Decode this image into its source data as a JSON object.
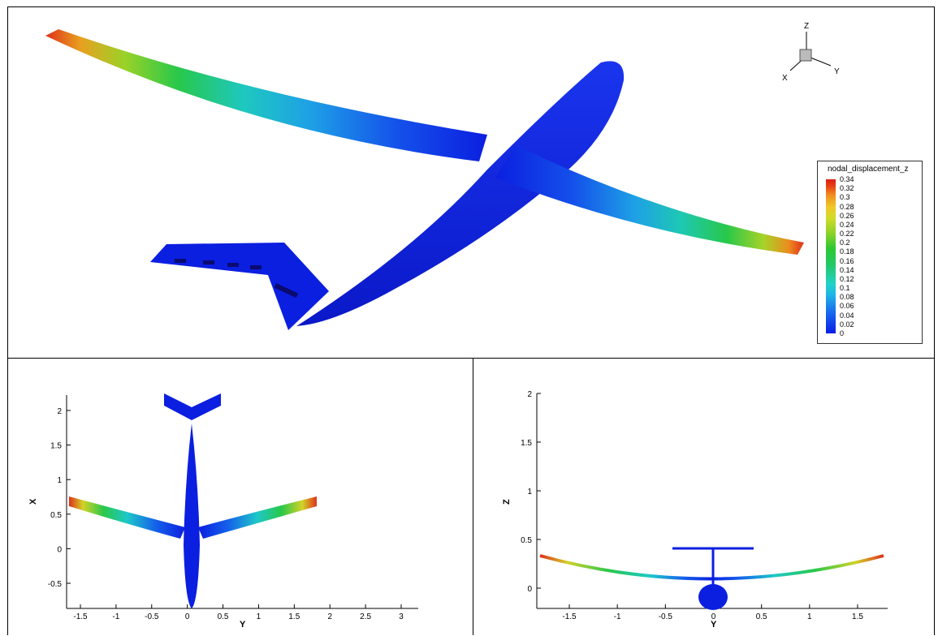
{
  "legend": {
    "title": "nodal_displacement_z",
    "labels": [
      "0.34",
      "0.32",
      "0.3",
      "0.28",
      "0.26",
      "0.24",
      "0.22",
      "0.2",
      "0.18",
      "0.16",
      "0.14",
      "0.12",
      "0.1",
      "0.08",
      "0.06",
      "0.04",
      "0.02",
      "0"
    ]
  },
  "triad": {
    "z": "Z",
    "x": "X",
    "y": "Y"
  },
  "top_view": {
    "xlabel": "Y",
    "ylabel": "X",
    "xticks": [
      "-1.5",
      "-1",
      "-0.5",
      "0",
      "0.5",
      "1",
      "1.5",
      "2",
      "2.5",
      "3"
    ],
    "yticks": [
      "2",
      "1.5",
      "1",
      "0.5",
      "0",
      "-0.5"
    ]
  },
  "front_view": {
    "xlabel": "Y",
    "ylabel": "Z",
    "xticks": [
      "-1.5",
      "-1",
      "-0.5",
      "0",
      "0.5",
      "1",
      "1.5"
    ],
    "yticks": [
      "2",
      "1.5",
      "1",
      "0.5",
      "0"
    ]
  },
  "colors": {
    "body": "#0b1fe0",
    "tip": "#e0301a",
    "frame": "#000000"
  }
}
